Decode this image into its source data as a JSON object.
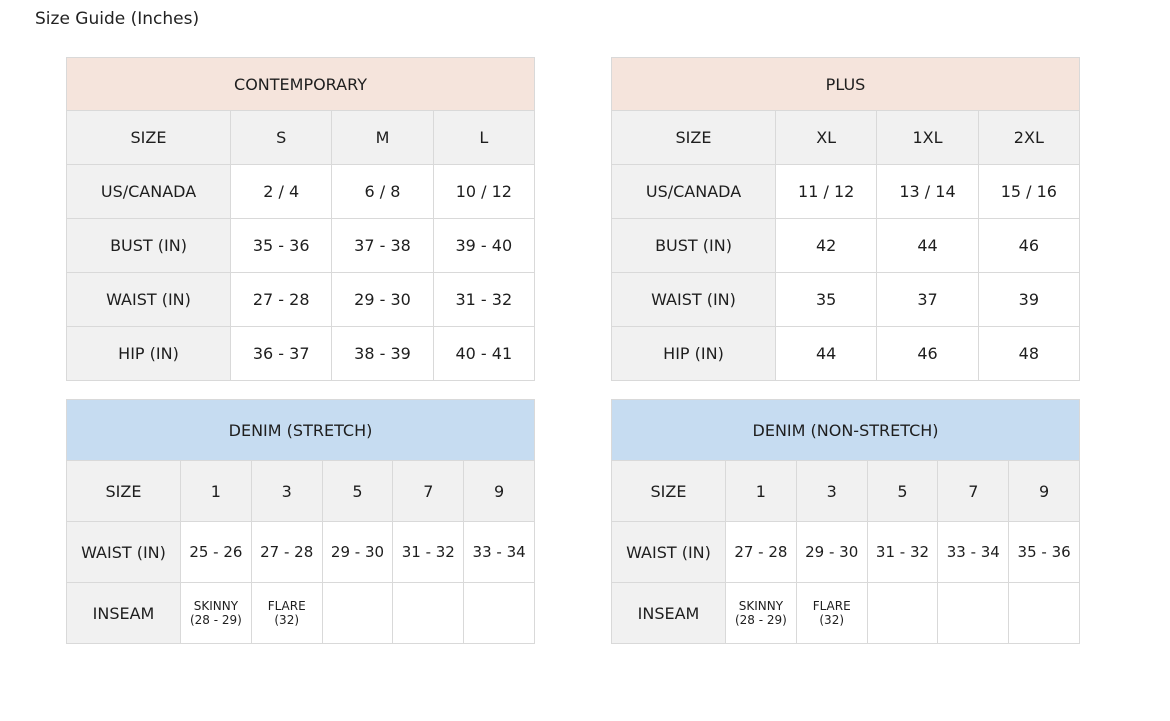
{
  "title": "Size Guide (Inches)",
  "colors": {
    "contemporary_header": "#f5e4dc",
    "denim_header": "#c6dcf1",
    "label_cell": "#f1f1f1"
  },
  "tables": [
    {
      "id": "contemporary",
      "heading": "CONTEMPORARY",
      "kind": "top",
      "rows": [
        [
          "SIZE",
          "S",
          "M",
          "L"
        ],
        [
          "US/CANADA",
          "2 / 4",
          "6 / 8",
          "10 / 12"
        ],
        [
          "BUST (IN)",
          "35 - 36",
          "37 - 38",
          "39 - 40"
        ],
        [
          "WAIST (IN)",
          "27 - 28",
          "29 - 30",
          "31 - 32"
        ],
        [
          "HIP (IN)",
          "36 - 37",
          "38 - 39",
          "40 - 41"
        ]
      ]
    },
    {
      "id": "plus",
      "heading": "PLUS",
      "kind": "top",
      "rows": [
        [
          "SIZE",
          "XL",
          "1XL",
          "2XL"
        ],
        [
          "US/CANADA",
          "11 / 12",
          "13 / 14",
          "15 / 16"
        ],
        [
          "BUST (IN)",
          "42",
          "44",
          "46"
        ],
        [
          "WAIST (IN)",
          "35",
          "37",
          "39"
        ],
        [
          "HIP (IN)",
          "44",
          "46",
          "48"
        ]
      ]
    },
    {
      "id": "denim-stretch",
      "heading": "DENIM (STRETCH)",
      "kind": "den",
      "rows": [
        [
          "SIZE",
          "1",
          "3",
          "5",
          "7",
          "9"
        ],
        [
          "WAIST (IN)",
          "25 - 26",
          "27 - 28",
          "29 - 30",
          "31 - 32",
          "33 - 34"
        ],
        [
          "INSEAM",
          "SKINNY\n(28 - 29)",
          "FLARE\n(32)",
          "",
          "",
          ""
        ]
      ]
    },
    {
      "id": "denim-non-stretch",
      "heading": "DENIM (NON-STRETCH)",
      "kind": "den",
      "rows": [
        [
          "SIZE",
          "1",
          "3",
          "5",
          "7",
          "9"
        ],
        [
          "WAIST (IN)",
          "27 - 28",
          "29 - 30",
          "31 - 32",
          "33 - 34",
          "35 - 36"
        ],
        [
          "INSEAM",
          "SKINNY\n(28 - 29)",
          "FLARE\n(32)",
          "",
          "",
          ""
        ]
      ]
    }
  ]
}
